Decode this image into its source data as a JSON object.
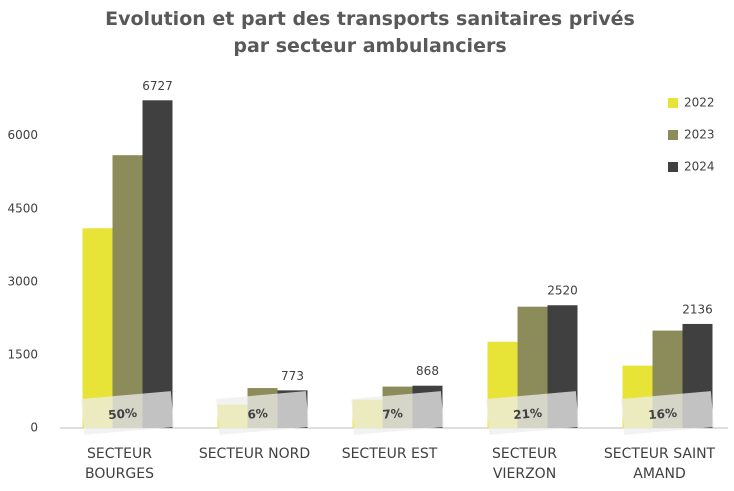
{
  "chart_data": {
    "type": "bar",
    "title": "Evolution et part des transports sanitaires privés par secteur ambulanciers",
    "categories": [
      "SECTEUR BOURGES",
      "SECTEUR NORD",
      "SECTEUR EST",
      "SECTEUR VIERZON",
      "SECTEUR SAINT AMAND"
    ],
    "series": [
      {
        "name": "2022",
        "color": "#e8e337",
        "values": [
          4100,
          480,
          580,
          1770,
          1280
        ]
      },
      {
        "name": "2023",
        "color": "#8c8c5a",
        "values": [
          5600,
          820,
          850,
          2490,
          2000
        ]
      },
      {
        "name": "2024",
        "color": "#404040",
        "values": [
          6727,
          773,
          868,
          2520,
          2136
        ],
        "show_values": true
      }
    ],
    "share_labels": [
      "50%",
      "6%",
      "7%",
      "21%",
      "16%"
    ],
    "ylim": [
      0,
      7000
    ],
    "yticks": [
      0,
      1500,
      3000,
      4500,
      6000
    ],
    "grid": false,
    "legend": "upper right"
  }
}
